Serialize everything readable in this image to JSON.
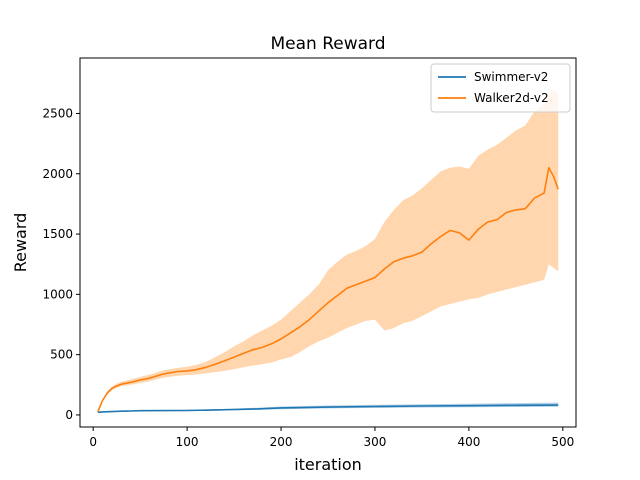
{
  "chart_data": {
    "type": "line",
    "title": "Mean Reward",
    "xlabel": "iteration",
    "ylabel": "Reward",
    "xlim": [
      -14,
      514
    ],
    "ylim": [
      -100,
      2960
    ],
    "xticks": [
      0,
      100,
      200,
      300,
      400,
      500
    ],
    "yticks": [
      0,
      500,
      1000,
      1500,
      2000,
      2500
    ],
    "grid": false,
    "legend_position": "top-right",
    "series": [
      {
        "name": "Swimmer-v2",
        "color": "#1f77b4",
        "band_color": "#1f77b4",
        "x": [
          5,
          10,
          20,
          30,
          40,
          50,
          75,
          100,
          125,
          150,
          175,
          200,
          250,
          300,
          350,
          400,
          450,
          495
        ],
        "mean": [
          22,
          25,
          28,
          31,
          33,
          35,
          36,
          37,
          40,
          45,
          50,
          58,
          65,
          70,
          74,
          77,
          80,
          82
        ],
        "lower": [
          18,
          21,
          24,
          27,
          29,
          31,
          32,
          33,
          35,
          38,
          42,
          48,
          54,
          58,
          62,
          64,
          66,
          68
        ],
        "upper": [
          26,
          29,
          32,
          35,
          37,
          39,
          40,
          42,
          46,
          53,
          60,
          70,
          78,
          84,
          88,
          92,
          98,
          102
        ]
      },
      {
        "name": "Walker2d-v2",
        "color": "#ff7f0e",
        "band_color": "#ffbb78",
        "x": [
          5,
          10,
          15,
          20,
          25,
          30,
          40,
          50,
          60,
          75,
          90,
          100,
          110,
          120,
          130,
          140,
          150,
          160,
          170,
          180,
          190,
          200,
          210,
          220,
          230,
          240,
          250,
          260,
          270,
          280,
          290,
          300,
          310,
          320,
          330,
          340,
          350,
          360,
          370,
          380,
          390,
          400,
          410,
          420,
          430,
          440,
          450,
          460,
          470,
          480,
          485,
          490,
          495
        ],
        "mean": [
          25,
          120,
          180,
          220,
          240,
          255,
          270,
          290,
          305,
          340,
          360,
          365,
          375,
          395,
          420,
          450,
          480,
          510,
          540,
          560,
          590,
          630,
          680,
          730,
          790,
          860,
          930,
          990,
          1050,
          1080,
          1110,
          1140,
          1210,
          1270,
          1300,
          1320,
          1350,
          1420,
          1480,
          1530,
          1510,
          1450,
          1540,
          1600,
          1620,
          1680,
          1700,
          1710,
          1800,
          1840,
          2050,
          1980,
          1870
        ],
        "lower": [
          20,
          110,
          170,
          205,
          225,
          240,
          250,
          265,
          280,
          310,
          325,
          330,
          335,
          345,
          355,
          365,
          380,
          395,
          410,
          420,
          435,
          460,
          480,
          520,
          570,
          610,
          640,
          680,
          720,
          750,
          780,
          790,
          700,
          720,
          760,
          780,
          820,
          860,
          900,
          920,
          940,
          960,
          970,
          1000,
          1020,
          1040,
          1060,
          1080,
          1100,
          1120,
          1250,
          1220,
          1190
        ],
        "upper": [
          30,
          130,
          195,
          235,
          260,
          275,
          295,
          315,
          335,
          370,
          390,
          400,
          415,
          440,
          480,
          520,
          570,
          610,
          660,
          700,
          740,
          790,
          860,
          930,
          1000,
          1080,
          1200,
          1270,
          1330,
          1360,
          1400,
          1460,
          1600,
          1700,
          1780,
          1820,
          1880,
          1950,
          2020,
          2050,
          2060,
          2040,
          2150,
          2200,
          2240,
          2300,
          2360,
          2400,
          2520,
          2580,
          2650,
          2700,
          2660
        ]
      }
    ]
  }
}
